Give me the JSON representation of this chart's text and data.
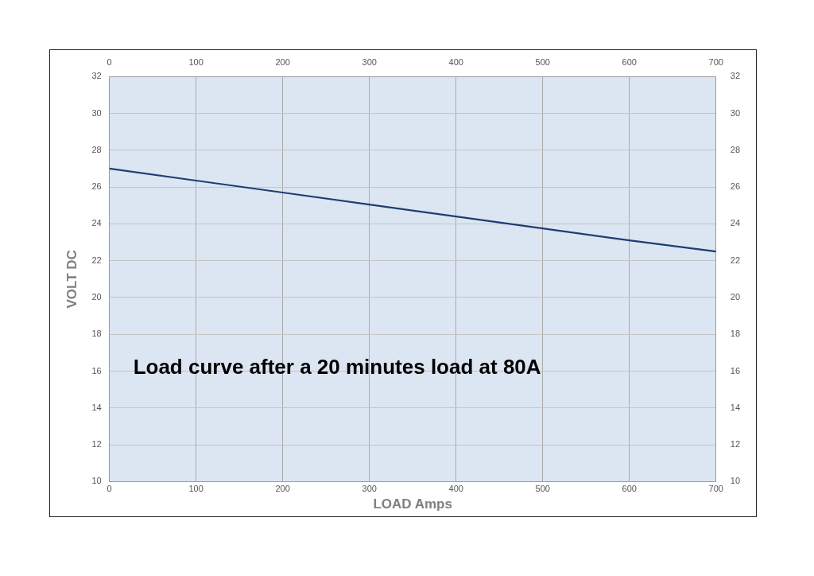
{
  "chart_data": {
    "type": "line",
    "x": [
      0,
      100,
      200,
      300,
      400,
      500,
      600,
      700
    ],
    "series": [
      {
        "color": "#1f3d73",
        "values": [
          27,
          26.35,
          25.7,
          25.05,
          24.4,
          23.75,
          23.1,
          22.5
        ]
      }
    ],
    "xlabel": "LOAD Amps",
    "ylabel": "VOLT DC",
    "xlim": [
      0,
      700
    ],
    "xticks": [
      0,
      100,
      200,
      300,
      400,
      500,
      600,
      700
    ],
    "x2lim": [
      0,
      700
    ],
    "x2ticks": [
      0,
      100,
      200,
      300,
      400,
      500,
      600,
      700
    ],
    "ylim": [
      10,
      32
    ],
    "yticks": [
      10,
      12,
      14,
      16,
      18,
      20,
      22,
      24,
      26,
      28,
      30,
      32
    ],
    "y2lim": [
      10,
      32
    ],
    "y2ticks": [
      10,
      12,
      14,
      16,
      18,
      20,
      22,
      24,
      26,
      28,
      30,
      32
    ],
    "annotations": [
      "Load curve after a 20 minutes load at 80A"
    ],
    "grid": true,
    "legend": false,
    "marker": "none",
    "line_style": "solid"
  }
}
